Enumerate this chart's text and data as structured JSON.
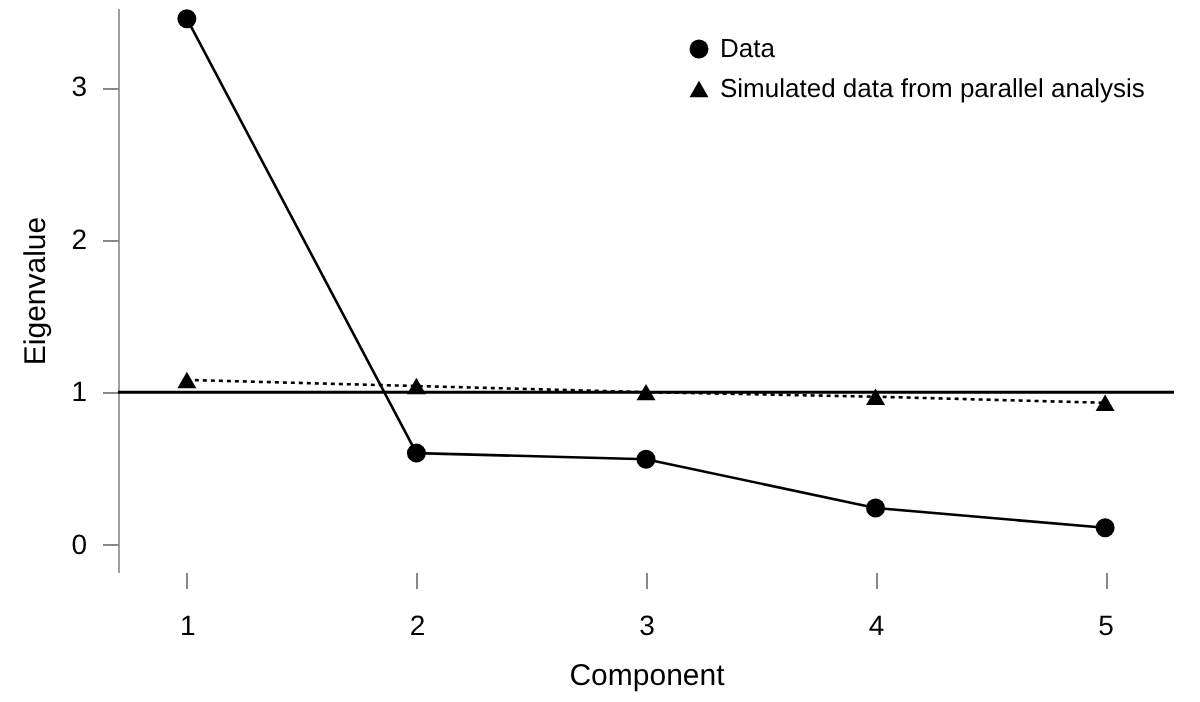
{
  "chart_data": {
    "type": "line",
    "xlabel": "Component",
    "ylabel": "Eigenvalue",
    "x": [
      1,
      2,
      3,
      4,
      5
    ],
    "xlim": [
      0.7,
      5.3
    ],
    "xticks": [
      1,
      2,
      3,
      4,
      5
    ],
    "ylim": [
      -0.18,
      3.52
    ],
    "yticks": [
      0,
      1,
      2,
      3
    ],
    "series": [
      {
        "name": "Data",
        "color": "#000000",
        "values": [
          3.45,
          0.6,
          0.56,
          0.24,
          0.11
        ],
        "marker": "circle",
        "line_style": "solid"
      },
      {
        "name": "Simulated data from parallel analysis",
        "color": "#000000",
        "values": [
          1.08,
          1.04,
          1.0,
          0.97,
          0.93
        ],
        "marker": "triangle",
        "line_style": "dotted"
      }
    ],
    "ref_lines": [
      {
        "axis": "y",
        "value": 1,
        "color": "#000000",
        "line_style": "solid"
      }
    ],
    "grid": false,
    "legend": "top right"
  }
}
